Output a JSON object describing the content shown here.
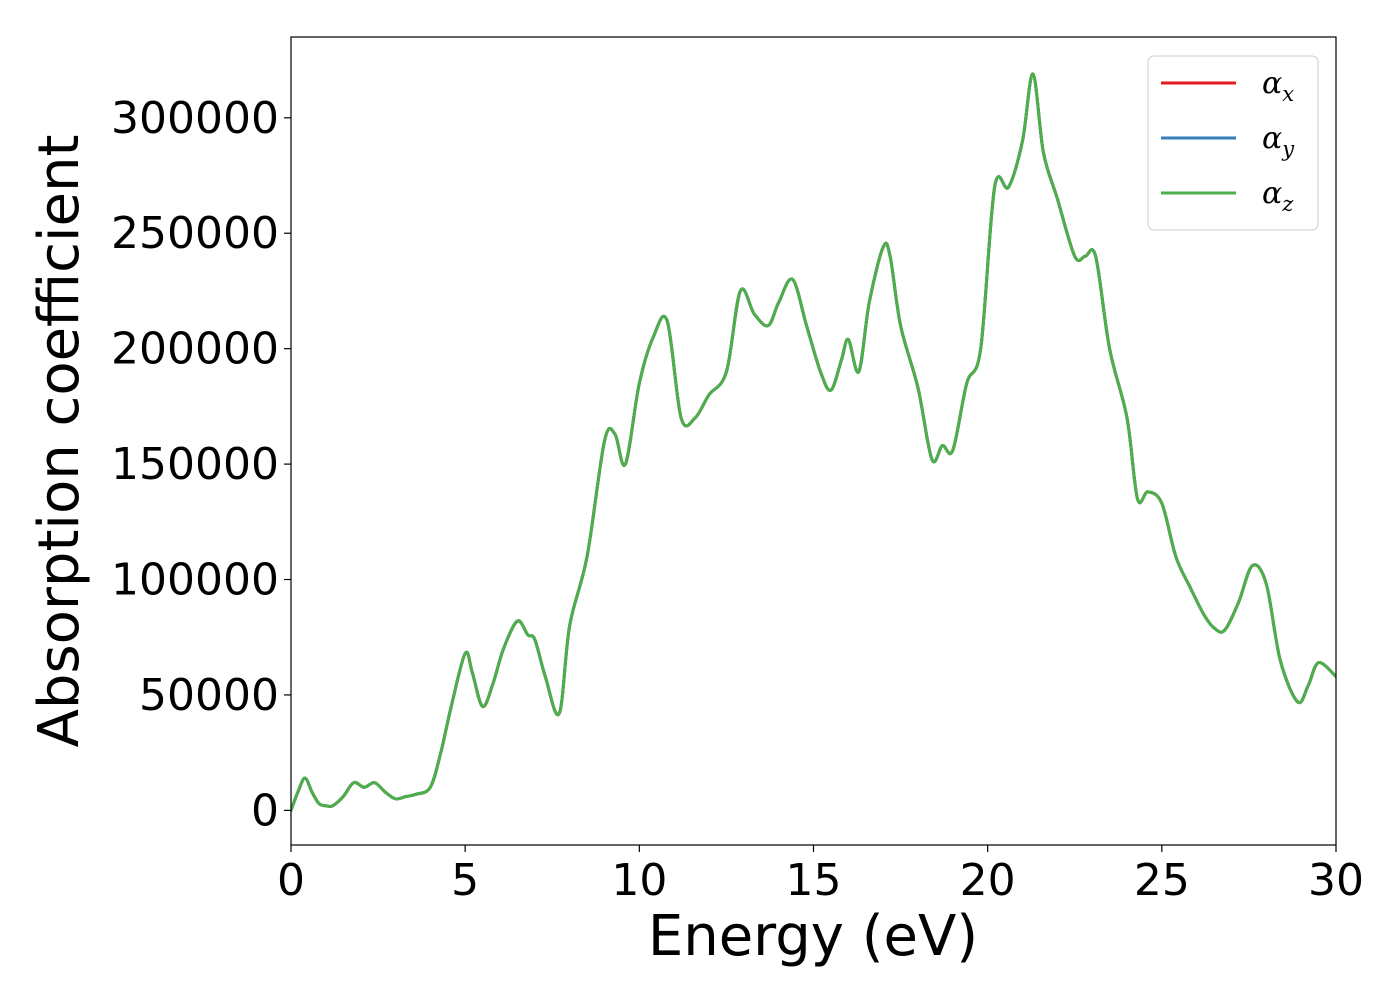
{
  "chart_data": {
    "type": "line",
    "title": "",
    "xlabel": "Energy (eV)",
    "ylabel": "Absorption coefficient",
    "xlim": [
      0,
      30
    ],
    "ylim": [
      -15000,
      335000
    ],
    "xticks": [
      0,
      5,
      10,
      15,
      20,
      25,
      30
    ],
    "yticks": [
      0,
      50000,
      100000,
      150000,
      200000,
      250000,
      300000
    ],
    "xtick_labels": [
      "0",
      "5",
      "10",
      "15",
      "20",
      "25",
      "30"
    ],
    "ytick_labels": [
      "0",
      "50000",
      "100000",
      "150000",
      "200000",
      "250000",
      "300000"
    ],
    "grid": false,
    "legend": {
      "position": "top-right",
      "entries": [
        {
          "symbol": "α",
          "subscript": "x",
          "color": "#e41a1c"
        },
        {
          "symbol": "α",
          "subscript": "y",
          "color": "#377eb8"
        },
        {
          "symbol": "α",
          "subscript": "z",
          "color": "#4daf4a"
        }
      ]
    },
    "x": [
      0,
      0.2,
      0.4,
      0.6,
      0.8,
      1.0,
      1.2,
      1.5,
      1.8,
      2.1,
      2.4,
      2.7,
      3.0,
      3.3,
      3.6,
      4.0,
      4.3,
      4.6,
      5.0,
      5.2,
      5.5,
      5.8,
      6.1,
      6.5,
      6.8,
      7.0,
      7.3,
      7.7,
      8.0,
      8.5,
      9.0,
      9.3,
      9.6,
      10.0,
      10.4,
      10.8,
      11.2,
      11.6,
      12.0,
      12.5,
      12.9,
      13.3,
      13.7,
      14.0,
      14.4,
      14.8,
      15.2,
      15.5,
      15.8,
      16.0,
      16.3,
      16.6,
      17.0,
      17.2,
      17.5,
      18.0,
      18.4,
      18.7,
      19.0,
      19.4,
      19.8,
      20.2,
      20.6,
      21.0,
      21.3,
      21.6,
      22.0,
      22.5,
      22.8,
      23.1,
      23.5,
      24.0,
      24.3,
      24.6,
      25.0,
      25.4,
      25.8,
      26.2,
      26.5,
      26.8,
      27.2,
      27.6,
      28.0,
      28.4,
      28.9,
      29.2,
      29.5,
      30.0
    ],
    "series": [
      {
        "name": "α_x",
        "color": "#e41a1c",
        "values": [
          0,
          8000,
          14000,
          8000,
          3000,
          2000,
          2000,
          6000,
          12000,
          10000,
          12000,
          8000,
          5000,
          6000,
          7000,
          10000,
          25000,
          45000,
          68000,
          60000,
          45000,
          55000,
          70000,
          82000,
          76000,
          74000,
          58000,
          42000,
          80000,
          110000,
          160000,
          163000,
          150000,
          185000,
          205000,
          212000,
          170000,
          170000,
          180000,
          190000,
          225000,
          215000,
          210000,
          220000,
          230000,
          210000,
          190000,
          182000,
          195000,
          204000,
          190000,
          220000,
          244000,
          240000,
          210000,
          183000,
          152000,
          158000,
          156000,
          185000,
          200000,
          270000,
          270000,
          290000,
          319000,
          285000,
          265000,
          240000,
          240000,
          240000,
          200000,
          170000,
          135000,
          138000,
          133000,
          110000,
          97000,
          85000,
          79000,
          78000,
          90000,
          106000,
          98000,
          65000,
          47000,
          54000,
          64000,
          58000
        ]
      },
      {
        "name": "α_y",
        "color": "#377eb8",
        "values": [
          0,
          8000,
          14000,
          8000,
          3000,
          2000,
          2000,
          6000,
          12000,
          10000,
          12000,
          8000,
          5000,
          6000,
          7000,
          10000,
          25000,
          45000,
          68000,
          60000,
          45000,
          55000,
          70000,
          82000,
          76000,
          74000,
          58000,
          42000,
          80000,
          110000,
          160000,
          163000,
          150000,
          185000,
          205000,
          212000,
          170000,
          170000,
          180000,
          190000,
          225000,
          215000,
          210000,
          220000,
          230000,
          210000,
          190000,
          182000,
          195000,
          204000,
          190000,
          220000,
          244000,
          240000,
          210000,
          183000,
          152000,
          158000,
          156000,
          185000,
          200000,
          270000,
          270000,
          290000,
          319000,
          285000,
          265000,
          240000,
          240000,
          240000,
          200000,
          170000,
          135000,
          138000,
          133000,
          110000,
          97000,
          85000,
          79000,
          78000,
          90000,
          106000,
          98000,
          65000,
          47000,
          54000,
          64000,
          58000
        ]
      },
      {
        "name": "α_z",
        "color": "#4daf4a",
        "values": [
          0,
          8000,
          14000,
          8000,
          3000,
          2000,
          2000,
          6000,
          12000,
          10000,
          12000,
          8000,
          5000,
          6000,
          7000,
          10000,
          25000,
          45000,
          68000,
          60000,
          45000,
          55000,
          70000,
          82000,
          76000,
          74000,
          58000,
          42000,
          80000,
          110000,
          160000,
          163000,
          150000,
          185000,
          205000,
          212000,
          170000,
          170000,
          180000,
          190000,
          225000,
          215000,
          210000,
          220000,
          230000,
          210000,
          190000,
          182000,
          195000,
          204000,
          190000,
          220000,
          244000,
          240000,
          210000,
          183000,
          152000,
          158000,
          156000,
          185000,
          200000,
          270000,
          270000,
          290000,
          319000,
          285000,
          265000,
          240000,
          240000,
          240000,
          200000,
          170000,
          135000,
          138000,
          133000,
          110000,
          97000,
          85000,
          79000,
          78000,
          90000,
          106000,
          98000,
          65000,
          47000,
          54000,
          64000,
          58000
        ]
      }
    ]
  }
}
